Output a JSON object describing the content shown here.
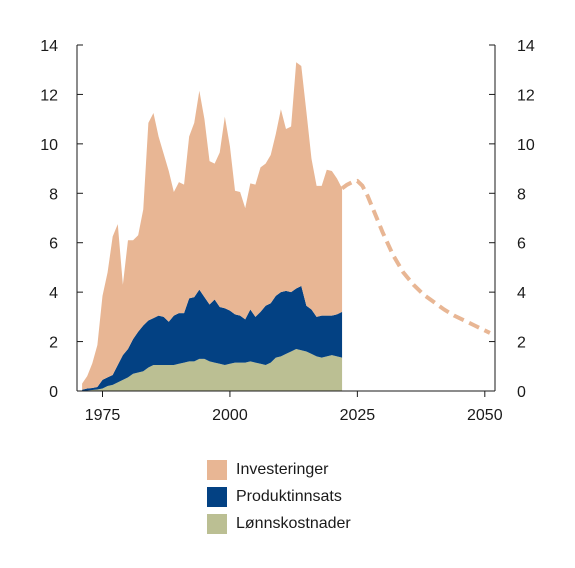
{
  "chart_data": {
    "type": "area",
    "x_ticks": [
      "1975",
      "2000",
      "2025",
      "2050"
    ],
    "x_tick_values": [
      1975,
      2000,
      2025,
      2050
    ],
    "y_ticks": [
      "0",
      "2",
      "4",
      "6",
      "8",
      "10",
      "12",
      "14"
    ],
    "y_tick_values": [
      0,
      2,
      4,
      6,
      8,
      10,
      12,
      14
    ],
    "xlim": [
      1970,
      2052
    ],
    "ylim": [
      0,
      14
    ],
    "grid": false,
    "legend_position": "bottom",
    "x": [
      1971,
      1972,
      1973,
      1974,
      1975,
      1976,
      1977,
      1978,
      1979,
      1980,
      1981,
      1982,
      1983,
      1984,
      1985,
      1986,
      1987,
      1988,
      1989,
      1990,
      1991,
      1992,
      1993,
      1994,
      1995,
      1996,
      1997,
      1998,
      1999,
      2000,
      2001,
      2002,
      2003,
      2004,
      2005,
      2006,
      2007,
      2008,
      2009,
      2010,
      2011,
      2012,
      2013,
      2014,
      2015,
      2016,
      2017,
      2018,
      2019,
      2020,
      2021,
      2022
    ],
    "series": [
      {
        "name": "Lønnskostnader",
        "color": "#bbbf93",
        "values": [
          0.0,
          0.02,
          0.04,
          0.06,
          0.1,
          0.2,
          0.25,
          0.35,
          0.45,
          0.55,
          0.7,
          0.75,
          0.8,
          0.95,
          1.05,
          1.05,
          1.05,
          1.05,
          1.05,
          1.1,
          1.15,
          1.2,
          1.2,
          1.3,
          1.3,
          1.2,
          1.15,
          1.1,
          1.05,
          1.1,
          1.15,
          1.15,
          1.15,
          1.2,
          1.15,
          1.1,
          1.05,
          1.15,
          1.35,
          1.4,
          1.5,
          1.6,
          1.7,
          1.65,
          1.6,
          1.5,
          1.4,
          1.35,
          1.4,
          1.45,
          1.4,
          1.35
        ]
      },
      {
        "name": "Produktinnsats",
        "color": "#034183",
        "values": [
          0.05,
          0.08,
          0.08,
          0.1,
          0.35,
          0.35,
          0.4,
          0.7,
          1.0,
          1.15,
          1.4,
          1.65,
          1.85,
          1.9,
          1.9,
          2.0,
          1.95,
          1.75,
          2.0,
          2.05,
          2.0,
          2.55,
          2.6,
          2.8,
          2.5,
          2.3,
          2.55,
          2.3,
          2.3,
          2.15,
          1.95,
          1.9,
          1.75,
          2.1,
          1.85,
          2.1,
          2.4,
          2.4,
          2.5,
          2.6,
          2.55,
          2.4,
          2.45,
          2.6,
          1.85,
          1.8,
          1.6,
          1.7,
          1.65,
          1.6,
          1.7,
          1.85
        ]
      },
      {
        "name": "Investeringer",
        "color": "#e8b694",
        "values": [
          0.25,
          0.5,
          1.0,
          1.7,
          3.4,
          4.25,
          5.6,
          5.7,
          2.85,
          4.4,
          4.0,
          3.9,
          4.7,
          8.0,
          8.3,
          7.25,
          6.6,
          6.1,
          5.0,
          5.3,
          5.2,
          6.55,
          7.05,
          8.05,
          7.2,
          5.8,
          5.5,
          6.25,
          7.75,
          6.65,
          5.0,
          5.0,
          4.5,
          5.1,
          5.35,
          5.85,
          5.75,
          6.0,
          6.55,
          7.4,
          6.55,
          6.7,
          9.15,
          8.9,
          7.85,
          6.1,
          5.3,
          5.25,
          5.9,
          5.85,
          5.5,
          5.0
        ]
      }
    ],
    "projection": {
      "color": "#e8b694",
      "style": "dashed",
      "x": [
        2022,
        2023,
        2024,
        2025,
        2026,
        2027,
        2028,
        2029,
        2030,
        2032,
        2034,
        2036,
        2038,
        2040,
        2042,
        2044,
        2046,
        2048,
        2050,
        2051
      ],
      "values": [
        8.2,
        8.35,
        8.45,
        8.5,
        8.3,
        7.9,
        7.4,
        6.9,
        6.4,
        5.5,
        4.8,
        4.3,
        3.9,
        3.6,
        3.3,
        3.05,
        2.85,
        2.65,
        2.45,
        2.35
      ]
    }
  },
  "legend": {
    "items": [
      {
        "label": "Investeringer",
        "color": "#e8b694"
      },
      {
        "label": "Produktinnsats",
        "color": "#034183"
      },
      {
        "label": "Lønnskostnader",
        "color": "#bbbf93"
      }
    ]
  }
}
